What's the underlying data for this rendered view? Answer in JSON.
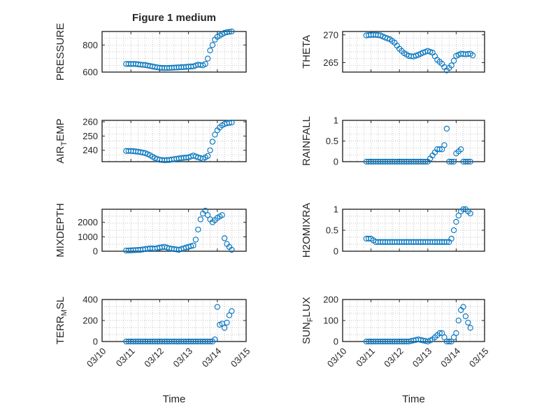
{
  "chart_data": [
    {
      "type": "scatter",
      "title": "Figure 1 medium",
      "ylabel": "PRESSURE",
      "xlim": [
        "03/10",
        "03/15"
      ],
      "ylim": [
        600,
        900
      ],
      "yticks": [
        "600",
        "800"
      ],
      "x": [
        "03/10 20:00",
        "03/11 00:00",
        "03/11 04:00",
        "03/11 08:00",
        "03/11 12:00",
        "03/11 16:00",
        "03/11 20:00",
        "03/12 00:00",
        "03/12 04:00",
        "03/12 08:00",
        "03/12 12:00",
        "03/12 16:00",
        "03/12 20:00",
        "03/13 00:00",
        "03/13 04:00",
        "03/13 08:00",
        "03/13 12:00",
        "03/13 14:00",
        "03/13 16:00",
        "03/13 18:00",
        "03/13 20:00",
        "03/13 22:00",
        "03/14 00:00",
        "03/14 02:00",
        "03/14 04:00",
        "03/14 06:00",
        "03/14 08:00",
        "03/14 12:00"
      ],
      "y": [
        660,
        660,
        660,
        655,
        652,
        645,
        638,
        632,
        630,
        631,
        633,
        635,
        637,
        640,
        642,
        655,
        650,
        660,
        700,
        760,
        800,
        840,
        860,
        870,
        880,
        890,
        895,
        900
      ],
      "grid": true
    },
    {
      "type": "scatter",
      "ylabel": "THETA",
      "xlim": [
        "03/10",
        "03/15"
      ],
      "ylim": [
        263.3,
        270.6
      ],
      "yticks": [
        "265",
        "270"
      ],
      "x": [
        "03/10 20:00",
        "03/11 00:00",
        "03/11 04:00",
        "03/11 08:00",
        "03/11 12:00",
        "03/11 16:00",
        "03/11 20:00",
        "03/12 00:00",
        "03/12 04:00",
        "03/12 08:00",
        "03/12 12:00",
        "03/12 16:00",
        "03/12 20:00",
        "03/13 00:00",
        "03/13 04:00",
        "03/13 08:00",
        "03/13 12:00",
        "03/13 16:00",
        "03/13 20:00",
        "03/14 00:00",
        "03/14 04:00",
        "03/14 08:00",
        "03/14 12:00",
        "03/14 14:00"
      ],
      "y": [
        269.9,
        270.0,
        270.0,
        269.9,
        269.5,
        269.2,
        268.6,
        267.5,
        266.7,
        266.2,
        266.1,
        266.4,
        266.8,
        267.1,
        266.8,
        265.5,
        264.8,
        263.6,
        264.5,
        266.2,
        266.6,
        266.5,
        266.6,
        266.3
      ],
      "grid": true
    },
    {
      "type": "scatter",
      "ylabel": "AIR_T_EMP",
      "xlim": [
        "03/10",
        "03/15"
      ],
      "ylim": [
        232,
        261
      ],
      "yticks": [
        "240",
        "250",
        "260"
      ],
      "x": [
        "03/10 20:00",
        "03/11 00:00",
        "03/11 06:00",
        "03/11 12:00",
        "03/11 16:00",
        "03/11 20:00",
        "03/12 00:00",
        "03/12 04:00",
        "03/12 08:00",
        "03/12 12:00",
        "03/12 18:00",
        "03/13 00:00",
        "03/13 04:00",
        "03/13 08:00",
        "03/13 12:00",
        "03/13 16:00",
        "03/13 18:00",
        "03/13 20:00",
        "03/13 22:00",
        "03/14 00:00",
        "03/14 02:00",
        "03/14 04:00",
        "03/14 06:00",
        "03/14 08:00",
        "03/14 12:00"
      ],
      "y": [
        239.5,
        239.5,
        239,
        238,
        236.5,
        234.5,
        233.3,
        233.0,
        233.2,
        233.8,
        234.5,
        235.0,
        236.3,
        235.0,
        234.0,
        236.0,
        240.0,
        246.0,
        251.0,
        254.0,
        256.0,
        257.5,
        258.5,
        259.0,
        259.5
      ],
      "grid": true
    },
    {
      "type": "scatter",
      "ylabel": "RAINFALL",
      "xlim": [
        "03/10",
        "03/15"
      ],
      "ylim": [
        0,
        1
      ],
      "yticks": [
        "0",
        "0.5",
        "1"
      ],
      "x": [
        "03/10 20:00",
        "03/11 00:00",
        "03/11 08:00",
        "03/11 16:00",
        "03/12 00:00",
        "03/12 08:00",
        "03/12 16:00",
        "03/13 00:00",
        "03/13 08:00",
        "03/13 10:00",
        "03/13 12:00",
        "03/13 14:00",
        "03/13 16:00",
        "03/13 18:00",
        "03/13 20:00",
        "03/13 22:00",
        "03/14 00:00",
        "03/14 02:00",
        "03/14 04:00",
        "03/14 06:00",
        "03/14 08:00",
        "03/14 12:00"
      ],
      "y": [
        0,
        0,
        0,
        0,
        0,
        0,
        0,
        0,
        0.3,
        0.3,
        0.3,
        0.4,
        0.8,
        0,
        0,
        0,
        0.2,
        0.25,
        0.3,
        0,
        0,
        0
      ],
      "grid": true
    },
    {
      "type": "scatter",
      "ylabel": "MIXDEPTH",
      "xlim": [
        "03/10",
        "03/15"
      ],
      "ylim": [
        0,
        2900
      ],
      "yticks": [
        "0",
        "1000",
        "2000"
      ],
      "x": [
        "03/10 20:00",
        "03/11 00:00",
        "03/11 04:00",
        "03/11 08:00",
        "03/11 12:00",
        "03/11 16:00",
        "03/11 20:00",
        "03/12 00:00",
        "03/12 04:00",
        "03/12 08:00",
        "03/12 12:00",
        "03/12 16:00",
        "03/12 20:00",
        "03/13 00:00",
        "03/13 04:00",
        "03/13 06:00",
        "03/13 08:00",
        "03/13 10:00",
        "03/13 12:00",
        "03/13 14:00",
        "03/13 16:00",
        "03/13 18:00",
        "03/13 20:00",
        "03/14 00:00",
        "03/14 02:00",
        "03/14 04:00",
        "03/14 06:00",
        "03/14 08:00",
        "03/14 12:00"
      ],
      "y": [
        50,
        60,
        80,
        100,
        150,
        200,
        180,
        250,
        300,
        200,
        150,
        100,
        200,
        300,
        400,
        800,
        1500,
        2200,
        2600,
        2800,
        2500,
        2200,
        2000,
        2300,
        2400,
        2500,
        900,
        500,
        100
      ],
      "grid": true
    },
    {
      "type": "scatter",
      "ylabel": "H2OMIXRA",
      "xlim": [
        "03/10",
        "03/15"
      ],
      "ylim": [
        0,
        1
      ],
      "yticks": [
        "0",
        "0.5",
        "1"
      ],
      "x": [
        "03/10 20:00",
        "03/11 00:00",
        "03/11 04:00",
        "03/11 12:00",
        "03/12 00:00",
        "03/12 12:00",
        "03/13 00:00",
        "03/13 12:00",
        "03/13 18:00",
        "03/13 20:00",
        "03/13 22:00",
        "03/14 00:00",
        "03/14 02:00",
        "03/14 04:00",
        "03/14 06:00",
        "03/14 08:00",
        "03/14 10:00",
        "03/14 12:00"
      ],
      "y": [
        0.3,
        0.3,
        0.22,
        0.22,
        0.22,
        0.22,
        0.22,
        0.22,
        0.22,
        0.3,
        0.5,
        0.7,
        0.85,
        0.95,
        1.0,
        1.0,
        0.95,
        0.9
      ],
      "grid": true
    },
    {
      "type": "scatter",
      "ylabel": "TERR_M_SL",
      "xlim": [
        "03/10",
        "03/15"
      ],
      "ylim": [
        0,
        400
      ],
      "yticks": [
        "0",
        "200",
        "400"
      ],
      "x": [
        "03/10 20:00",
        "03/11 00:00",
        "03/11 08:00",
        "03/11 16:00",
        "03/12 00:00",
        "03/12 08:00",
        "03/12 16:00",
        "03/13 00:00",
        "03/13 08:00",
        "03/13 16:00",
        "03/13 20:00",
        "03/13 22:00",
        "03/14 00:00",
        "03/14 02:00",
        "03/14 04:00",
        "03/14 06:00",
        "03/14 08:00",
        "03/14 10:00",
        "03/14 12:00"
      ],
      "y": [
        0,
        0,
        0,
        0,
        0,
        0,
        0,
        0,
        0,
        0,
        0,
        20,
        330,
        160,
        170,
        130,
        180,
        250,
        290
      ],
      "grid": true
    },
    {
      "type": "scatter",
      "ylabel": "SUN_F_LUX",
      "xlim": [
        "03/10",
        "03/15"
      ],
      "ylim": [
        0,
        200
      ],
      "yticks": [
        "0",
        "100",
        "200"
      ],
      "x": [
        "03/10 20:00",
        "03/11 00:00",
        "03/11 08:00",
        "03/11 16:00",
        "03/12 00:00",
        "03/12 08:00",
        "03/12 12:00",
        "03/12 16:00",
        "03/12 20:00",
        "03/13 00:00",
        "03/13 04:00",
        "03/13 08:00",
        "03/13 10:00",
        "03/13 12:00",
        "03/13 16:00",
        "03/13 20:00",
        "03/14 00:00",
        "03/14 02:00",
        "03/14 04:00",
        "03/14 06:00",
        "03/14 08:00",
        "03/14 10:00",
        "03/14 12:00"
      ],
      "y": [
        0,
        0,
        0,
        0,
        0,
        0,
        5,
        10,
        5,
        0,
        10,
        30,
        40,
        40,
        0,
        0,
        40,
        100,
        150,
        165,
        120,
        90,
        65
      ],
      "grid": true
    }
  ],
  "xticks": [
    "03/10",
    "03/11",
    "03/12",
    "03/13",
    "03/14",
    "03/15"
  ],
  "xlabel": "Time"
}
